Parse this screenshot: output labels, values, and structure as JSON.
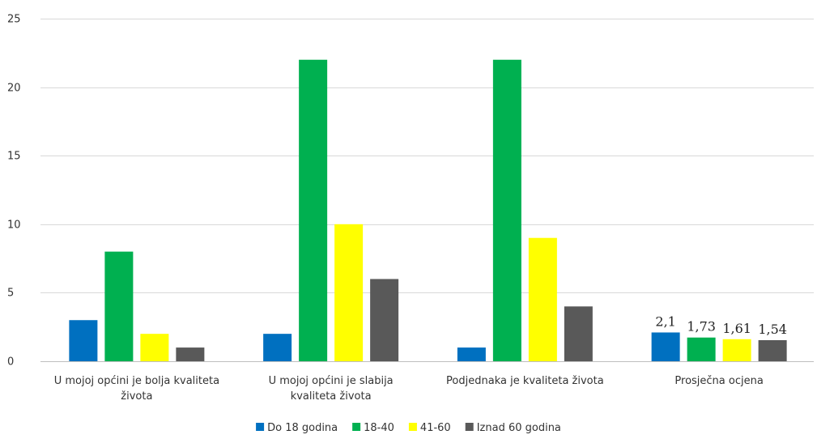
{
  "chart_data": {
    "type": "bar",
    "categories": [
      [
        "U mojoj općini je bolja kvaliteta",
        "života"
      ],
      [
        "U mojoj općini je slabija",
        "kvaliteta života"
      ],
      [
        "Podjednaka je kvaliteta života"
      ],
      [
        "Prosječna ocjena"
      ]
    ],
    "series": [
      {
        "name": "Do 18 godina",
        "color": "#0070c0",
        "values": [
          3,
          2,
          1,
          2.1
        ]
      },
      {
        "name": "18-40",
        "color": "#00b050",
        "values": [
          8,
          22,
          22,
          1.73
        ]
      },
      {
        "name": "41-60",
        "color": "#ffff00",
        "values": [
          2,
          10,
          9,
          1.61
        ]
      },
      {
        "name": "Iznad 60 godina",
        "color": "#595959",
        "values": [
          1,
          6,
          4,
          1.54
        ]
      }
    ],
    "data_labels": {
      "category_index": 3,
      "labels": [
        "2,1",
        "1,73",
        "1,61",
        "1,54"
      ]
    },
    "ylim": [
      0,
      25
    ],
    "yticks": [
      0,
      5,
      10,
      15,
      20,
      25
    ],
    "grid": true,
    "legend_position": "bottom",
    "title": "",
    "xlabel": "",
    "ylabel": ""
  }
}
